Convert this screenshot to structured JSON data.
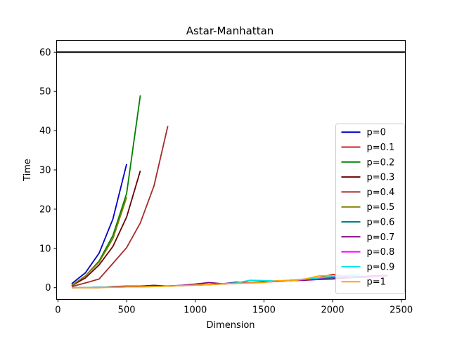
{
  "chart_data": {
    "type": "line",
    "title": "Astar-Manhattan",
    "xlabel": "Dimension",
    "ylabel": "Time",
    "xlim": [
      -10,
      2530
    ],
    "ylim": [
      -3,
      63
    ],
    "xticks": [
      0,
      500,
      1000,
      1500,
      2000,
      2500
    ],
    "yticks": [
      0,
      10,
      20,
      30,
      40,
      50,
      60
    ],
    "grid": false,
    "legend_position": "lower right",
    "reference_line": {
      "y": 60,
      "color": "#000000"
    },
    "series": [
      {
        "name": "p=0",
        "color": "#0000c8",
        "x": [
          100,
          200,
          300,
          400,
          500
        ],
        "y": [
          1.0,
          3.8,
          8.8,
          17.5,
          31.5
        ]
      },
      {
        "name": "p=0.1",
        "color": "#cc2020",
        "x": [
          1900,
          2000,
          2100
        ],
        "y": [
          2.5,
          3.4,
          2.8
        ]
      },
      {
        "name": "p=0.2",
        "color": "#008000",
        "x": [
          100,
          200,
          300,
          400,
          500,
          600
        ],
        "y": [
          0.5,
          3.0,
          6.8,
          13.3,
          24.0,
          49.0
        ]
      },
      {
        "name": "p=0.3",
        "color": "#6b0000",
        "x": [
          100,
          200,
          300,
          400,
          500,
          600
        ],
        "y": [
          0.5,
          2.5,
          5.8,
          10.5,
          18.0,
          29.8
        ]
      },
      {
        "name": "p=0.4",
        "color": "#a52a2a",
        "x": [
          100,
          200,
          300,
          400,
          500,
          600,
          700,
          800
        ],
        "y": [
          0.3,
          1.2,
          2.2,
          6.2,
          10.2,
          16.5,
          26.0,
          41.2
        ]
      },
      {
        "name": "p=0.5",
        "color": "#808000",
        "x": [
          100,
          200,
          300,
          400,
          500
        ],
        "y": [
          0.6,
          3.0,
          6.5,
          12.5,
          23.0
        ]
      },
      {
        "name": "p=0.6",
        "color": "#008080",
        "x": [
          100,
          300,
          500,
          700,
          900,
          1100,
          1300,
          1500,
          1700,
          1900,
          2100,
          2300
        ],
        "y": [
          0.0,
          0.1,
          0.2,
          0.4,
          0.5,
          0.8,
          1.1,
          1.4,
          1.9,
          2.3,
          2.7,
          3.0
        ]
      },
      {
        "name": "p=0.7",
        "color": "#800080",
        "x": [
          100,
          300,
          400,
          500,
          600,
          700,
          800,
          900,
          1000,
          1100,
          1200,
          1300,
          1400,
          1500,
          1600,
          1700,
          1800,
          1900,
          2000,
          2100,
          2200,
          2300,
          2400
        ],
        "y": [
          0.0,
          0.0,
          0.3,
          0.4,
          0.4,
          0.6,
          0.4,
          0.6,
          0.9,
          1.3,
          1.0,
          1.4,
          1.3,
          1.5,
          1.6,
          1.8,
          1.9,
          2.1,
          2.2,
          2.5,
          2.7,
          3.0,
          3.1
        ]
      },
      {
        "name": "p=0.8",
        "color": "#ff00ff",
        "x": [
          100,
          300,
          500,
          700,
          900,
          1100,
          1300,
          1500,
          1700,
          1900,
          2000,
          2200,
          2400
        ],
        "y": [
          0.0,
          0.1,
          0.2,
          0.3,
          0.5,
          0.8,
          1.1,
          1.4,
          1.8,
          2.4,
          2.8,
          2.6,
          3.0
        ]
      },
      {
        "name": "p=0.9",
        "color": "#00e5e5",
        "x": [
          100,
          300,
          500,
          700,
          900,
          1100,
          1300,
          1400,
          1500,
          1600,
          1700,
          1800,
          1900,
          2000,
          2100,
          2200
        ],
        "y": [
          0.0,
          0.1,
          0.2,
          0.3,
          0.5,
          0.8,
          1.2,
          1.9,
          1.8,
          1.7,
          1.9,
          2.2,
          2.5,
          2.9,
          3.1,
          3.3
        ]
      },
      {
        "name": "p=1",
        "color": "#ffa500",
        "x": [
          100,
          300,
          500,
          700,
          900,
          1100,
          1300,
          1500,
          1600,
          1700,
          1800,
          1900,
          2000
        ],
        "y": [
          0.0,
          0.0,
          0.2,
          0.3,
          0.5,
          0.8,
          1.1,
          1.3,
          1.8,
          1.7,
          2.2,
          3.0,
          3.1
        ]
      }
    ]
  }
}
